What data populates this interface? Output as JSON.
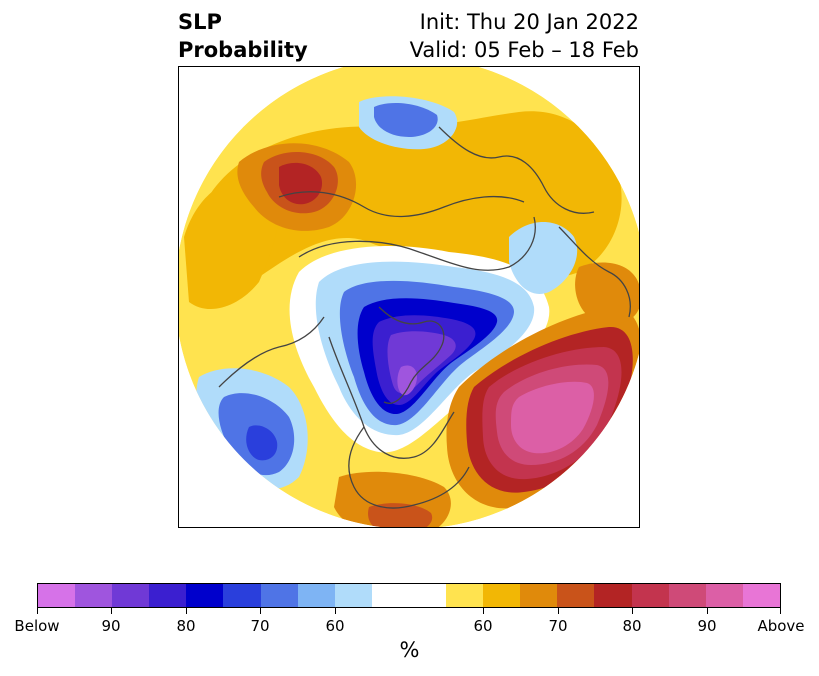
{
  "title": {
    "left_line1": "SLP",
    "left_line2": "Probability",
    "right_line1": "Init: Thu 20 Jan 2022",
    "right_line2": "Valid: 05 Feb – 18 Feb"
  },
  "colorbar": {
    "colors": [
      "#d672e8",
      "#9f55de",
      "#7039d6",
      "#3b1fd0",
      "#0000cc",
      "#2a3fdc",
      "#4f74e6",
      "#7eb4f4",
      "#b0dcfa",
      "#ffffff",
      "#ffffff",
      "#ffe34f",
      "#f2b705",
      "#e08a0b",
      "#c9531a",
      "#b32424",
      "#c3344e",
      "#cf4a78",
      "#dc5fa6",
      "#e875d6"
    ],
    "labels": [
      "Below",
      "90",
      "80",
      "70",
      "60",
      "60",
      "70",
      "80",
      "90",
      "Above"
    ],
    "unit": "%"
  },
  "map": {
    "colors": {
      "yellow": "#ffe34f",
      "gold": "#f2b705",
      "orange": "#e08a0b",
      "dark_orange": "#c9531a",
      "red": "#b32424",
      "crimson": "#c3344e",
      "rose": "#cf4a78",
      "pink": "#dc5fa6",
      "pale_blue": "#b0dcfa",
      "light_blue": "#7eb4f4",
      "blue": "#4f74e6",
      "med_blue": "#2a3fdc",
      "deep_blue": "#0000cc",
      "indigo": "#3b1fd0",
      "violet": "#7039d6",
      "purple": "#9f55de",
      "coastline": "#444444"
    }
  }
}
